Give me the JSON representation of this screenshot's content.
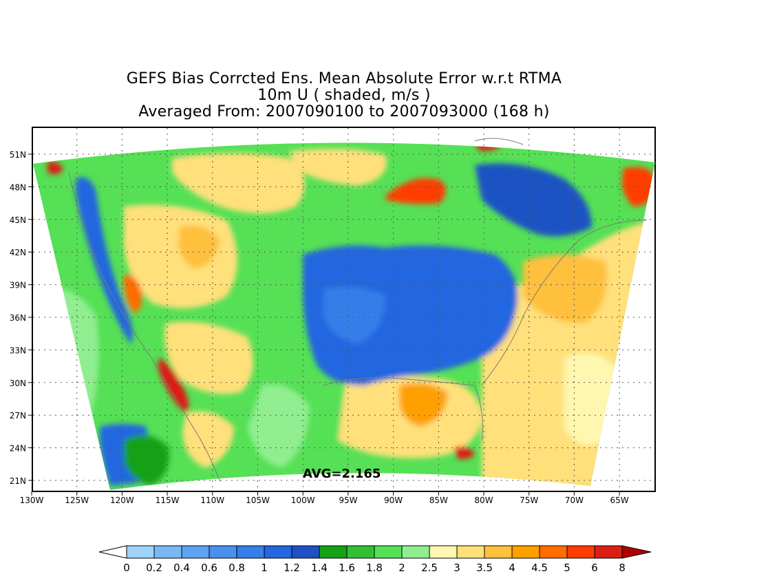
{
  "title": {
    "line1": "GEFS Bias Corrcted Ens. Mean Absolute Error w.r.t RTMA",
    "line2": "10m U ( shaded, m/s )",
    "line3": "Averaged From: 2007090100 to 2007093000 (168 h)"
  },
  "avg_label": "AVG=2.165",
  "lat_labels": [
    "51N",
    "48N",
    "45N",
    "42N",
    "39N",
    "36N",
    "33N",
    "30N",
    "27N",
    "24N",
    "21N"
  ],
  "lon_labels": [
    "130W",
    "125W",
    "120W",
    "115W",
    "110W",
    "105W",
    "100W",
    "95W",
    "90W",
    "85W",
    "80W",
    "75W",
    "70W",
    "65W"
  ],
  "colorbar": {
    "labels": [
      "0",
      "0.2",
      "0.4",
      "0.6",
      "0.8",
      "1",
      "1.2",
      "1.4",
      "1.6",
      "1.8",
      "2",
      "2.5",
      "3",
      "3.5",
      "4",
      "4.5",
      "5",
      "6",
      "8"
    ],
    "colors": [
      "#9fd3f8",
      "#7ab7f5",
      "#5ea2f2",
      "#4a8ff0",
      "#367eea",
      "#2466e0",
      "#1e52c4",
      "#16a016",
      "#32c032",
      "#55e055",
      "#90ee90",
      "#fff7b0",
      "#ffe07a",
      "#ffc03c",
      "#ffa000",
      "#ff6c00",
      "#ff3c00",
      "#dc1e14",
      "#b00000"
    ]
  },
  "colors": {
    "map_frame": "#000000",
    "grid_dots": "#555555",
    "coastline": "#7a7a7a"
  }
}
